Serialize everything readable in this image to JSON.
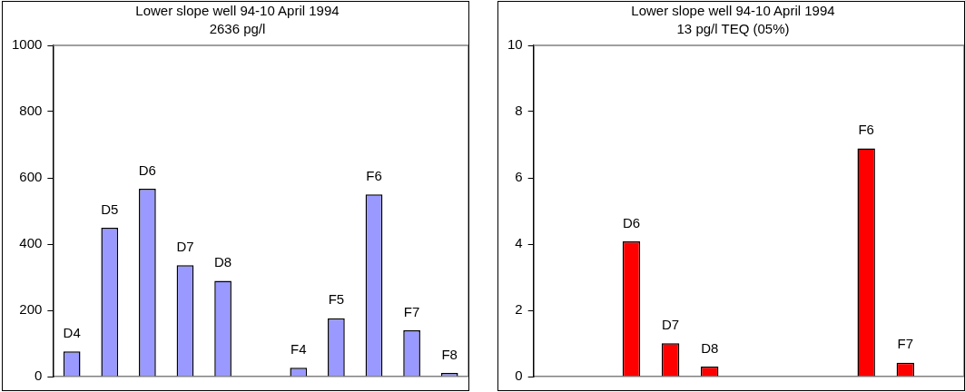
{
  "chart_data": [
    {
      "type": "bar",
      "title": "Lower slope well 94-10 April 1994",
      "subtitle": "2636 pg/l",
      "categories": [
        "D4",
        "D5",
        "D6",
        "D7",
        "D8",
        null,
        "F4",
        "F5",
        "F6",
        "F7",
        "F8"
      ],
      "values": [
        76,
        449,
        567,
        336,
        289,
        null,
        27,
        176,
        550,
        140,
        11
      ],
      "color": "#9999ff",
      "ylim": [
        0,
        1000
      ],
      "yticks": [
        0,
        200,
        400,
        600,
        800,
        1000
      ],
      "grid": false,
      "legend": false
    },
    {
      "type": "bar",
      "title": "Lower slope well 94-10 April 1994",
      "subtitle": "13 pg/l TEQ (05%)",
      "categories": [
        null,
        null,
        "D6",
        "D7",
        "D8",
        null,
        null,
        null,
        "F6",
        "F7",
        null
      ],
      "values": [
        null,
        null,
        4.08,
        1.01,
        0.3,
        null,
        null,
        null,
        6.89,
        0.42,
        null
      ],
      "color": "#ff0000",
      "ylim": [
        0,
        10
      ],
      "yticks": [
        0,
        2,
        4,
        6,
        8,
        10
      ],
      "grid": false,
      "legend": false
    }
  ]
}
